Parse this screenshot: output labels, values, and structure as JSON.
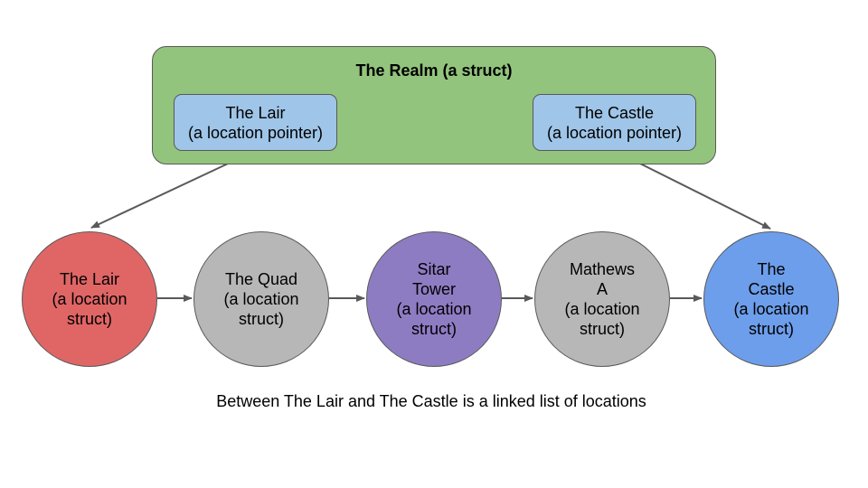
{
  "realm": {
    "title": "The Realm (a struct)",
    "color": "#93c47d",
    "pointers": [
      {
        "line1": "The Lair",
        "line2": "(a location pointer)"
      },
      {
        "line1": "The Castle",
        "line2": "(a location pointer)"
      }
    ],
    "pointer_color": "#9fc5e8"
  },
  "nodes": [
    {
      "lines": [
        "The Lair",
        "(a location",
        "struct)"
      ],
      "color": "#e06666"
    },
    {
      "lines": [
        "The Quad",
        "(a location",
        "struct)"
      ],
      "color": "#b7b7b7"
    },
    {
      "lines": [
        "Sitar",
        "Tower",
        "(a location",
        "struct)"
      ],
      "color": "#8e7cc3"
    },
    {
      "lines": [
        "Mathews",
        "A",
        "(a location",
        "struct)"
      ],
      "color": "#b7b7b7"
    },
    {
      "lines": [
        "The",
        "Castle",
        "(a location",
        "struct)"
      ],
      "color": "#6d9eeb"
    }
  ],
  "caption": "Between The Lair and The Castle is a linked list of locations",
  "arrow_color": "#595959"
}
